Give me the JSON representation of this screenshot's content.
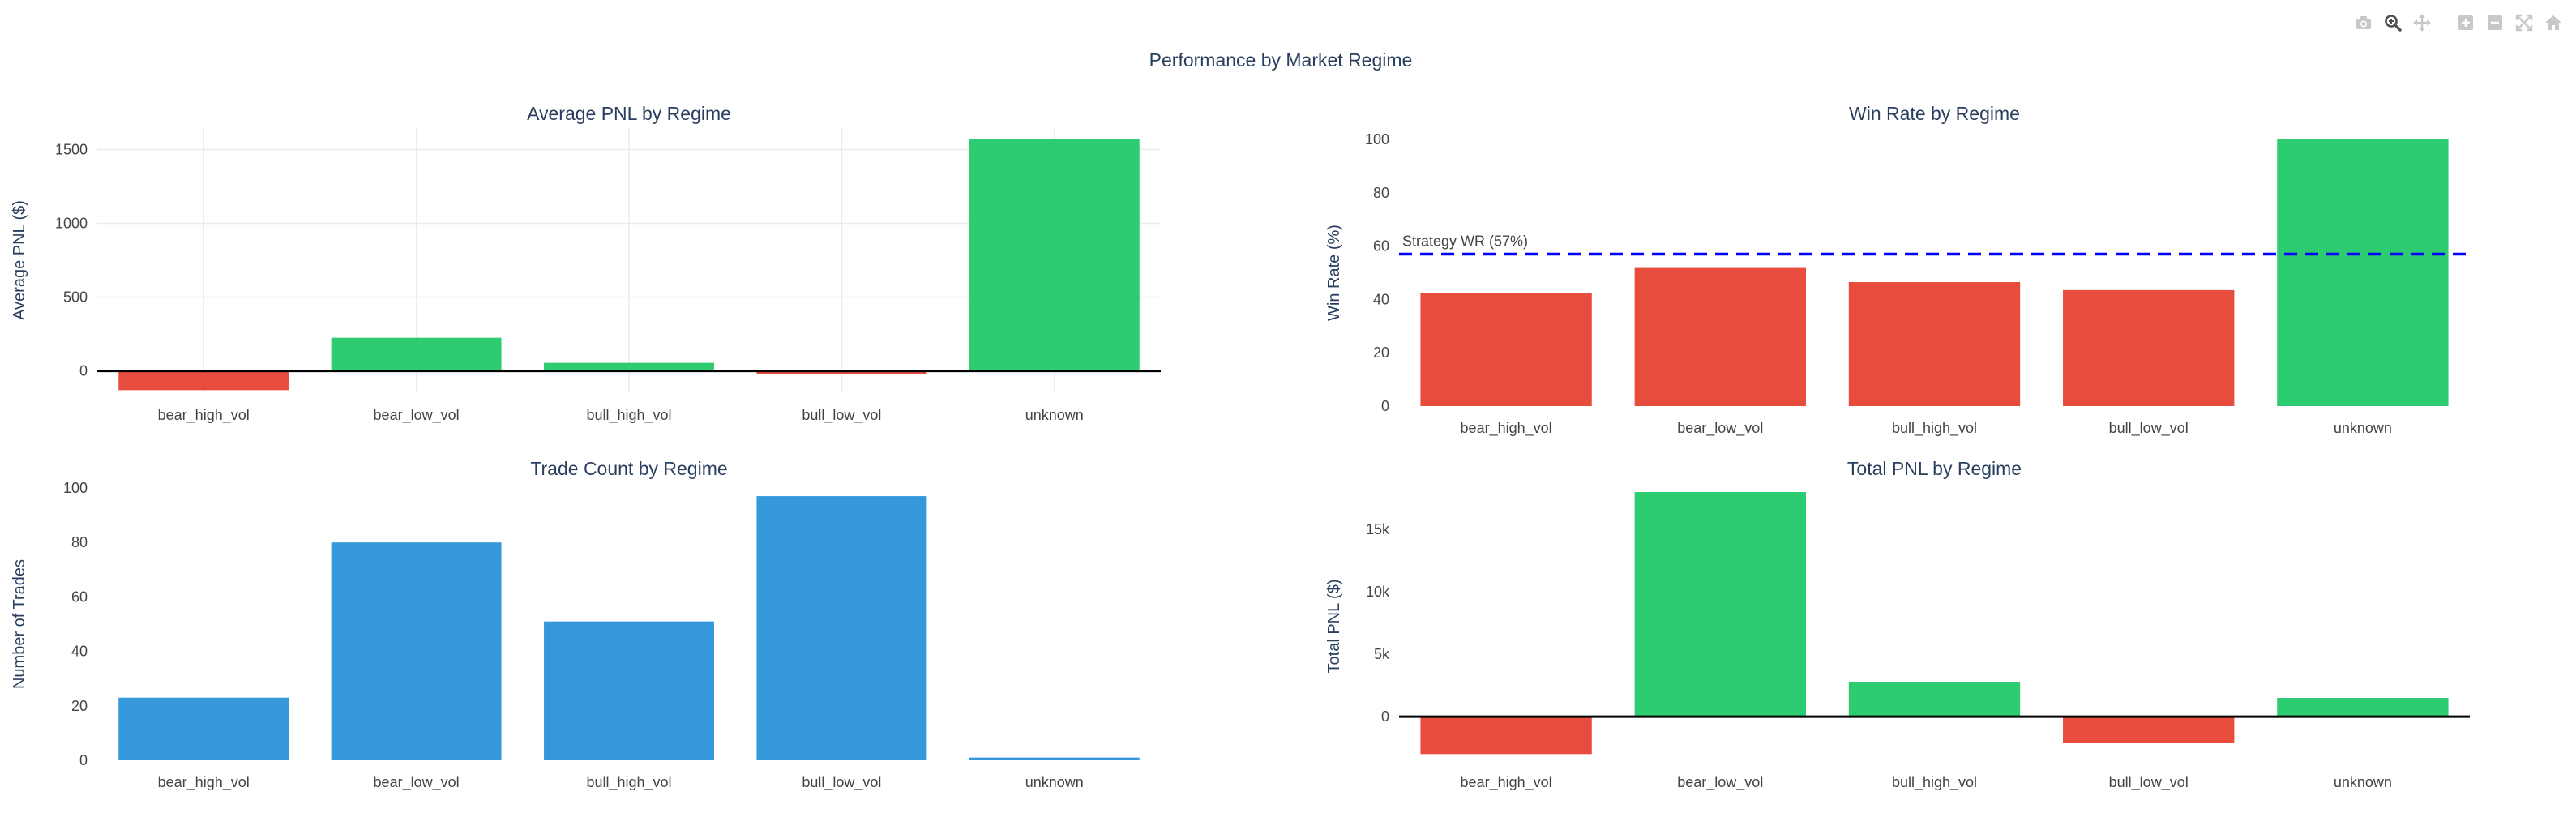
{
  "title": "Performance by Market Regime",
  "modebar": {
    "icons": [
      "camera-icon",
      "zoom-icon",
      "pan-icon",
      "zoom-in-icon",
      "zoom-out-icon",
      "autoscale-icon",
      "reset-axes-icon"
    ]
  },
  "colors": {
    "red": "#e74c3c",
    "green": "#2ecc71",
    "blue": "#3498db",
    "refline": "#0000ff",
    "text": "#2a3f5f",
    "tick": "#444444"
  },
  "chart_data": [
    {
      "type": "bar",
      "title": "Average PNL by Regime",
      "ylabel": "Average PNL ($)",
      "categories": [
        "bear_high_vol",
        "bear_low_vol",
        "bull_high_vol",
        "bull_low_vol",
        "unknown"
      ],
      "values": [
        -130,
        225,
        55,
        -20,
        1570
      ],
      "ylim": [
        -150,
        1650
      ],
      "yticks": [
        0,
        500,
        1000,
        1500
      ],
      "ytick_labels": [
        "0",
        "500",
        "1000",
        "1500"
      ],
      "grid": true,
      "zero_line": true
    },
    {
      "type": "bar",
      "title": "Win Rate by Regime",
      "ylabel": "Win Rate (%)",
      "categories": [
        "bear_high_vol",
        "bear_low_vol",
        "bull_high_vol",
        "bull_low_vol",
        "unknown"
      ],
      "values": [
        42.5,
        51.8,
        46.5,
        43.5,
        100
      ],
      "ylim": [
        0,
        100
      ],
      "yticks": [
        0,
        20,
        40,
        60,
        80,
        100
      ],
      "ytick_labels": [
        "0",
        "20",
        "40",
        "60",
        "80",
        "100"
      ],
      "grid": false,
      "zero_line": false,
      "reference_line": {
        "value": 57,
        "label": "Strategy WR (57%)"
      }
    },
    {
      "type": "bar",
      "title": "Trade Count by Regime",
      "ylabel": "Number of Trades",
      "categories": [
        "bear_high_vol",
        "bear_low_vol",
        "bull_high_vol",
        "bull_low_vol",
        "unknown"
      ],
      "values": [
        23,
        80,
        51,
        97,
        1
      ],
      "ylim": [
        0,
        100
      ],
      "yticks": [
        0,
        20,
        40,
        60,
        80,
        100
      ],
      "ytick_labels": [
        "0",
        "20",
        "40",
        "60",
        "80",
        "100"
      ],
      "grid": false,
      "zero_line": false
    },
    {
      "type": "bar",
      "title": "Total PNL by Regime",
      "ylabel": "Total PNL ($)",
      "categories": [
        "bear_high_vol",
        "bear_low_vol",
        "bull_high_vol",
        "bull_low_vol",
        "unknown"
      ],
      "values": [
        -3000,
        18000,
        2800,
        -2100,
        1500
      ],
      "ylim": [
        -3500,
        18000
      ],
      "yticks": [
        0,
        5000,
        10000,
        15000
      ],
      "ytick_labels": [
        "0",
        "5k",
        "10k",
        "15k"
      ],
      "grid": false,
      "zero_line": true
    }
  ]
}
